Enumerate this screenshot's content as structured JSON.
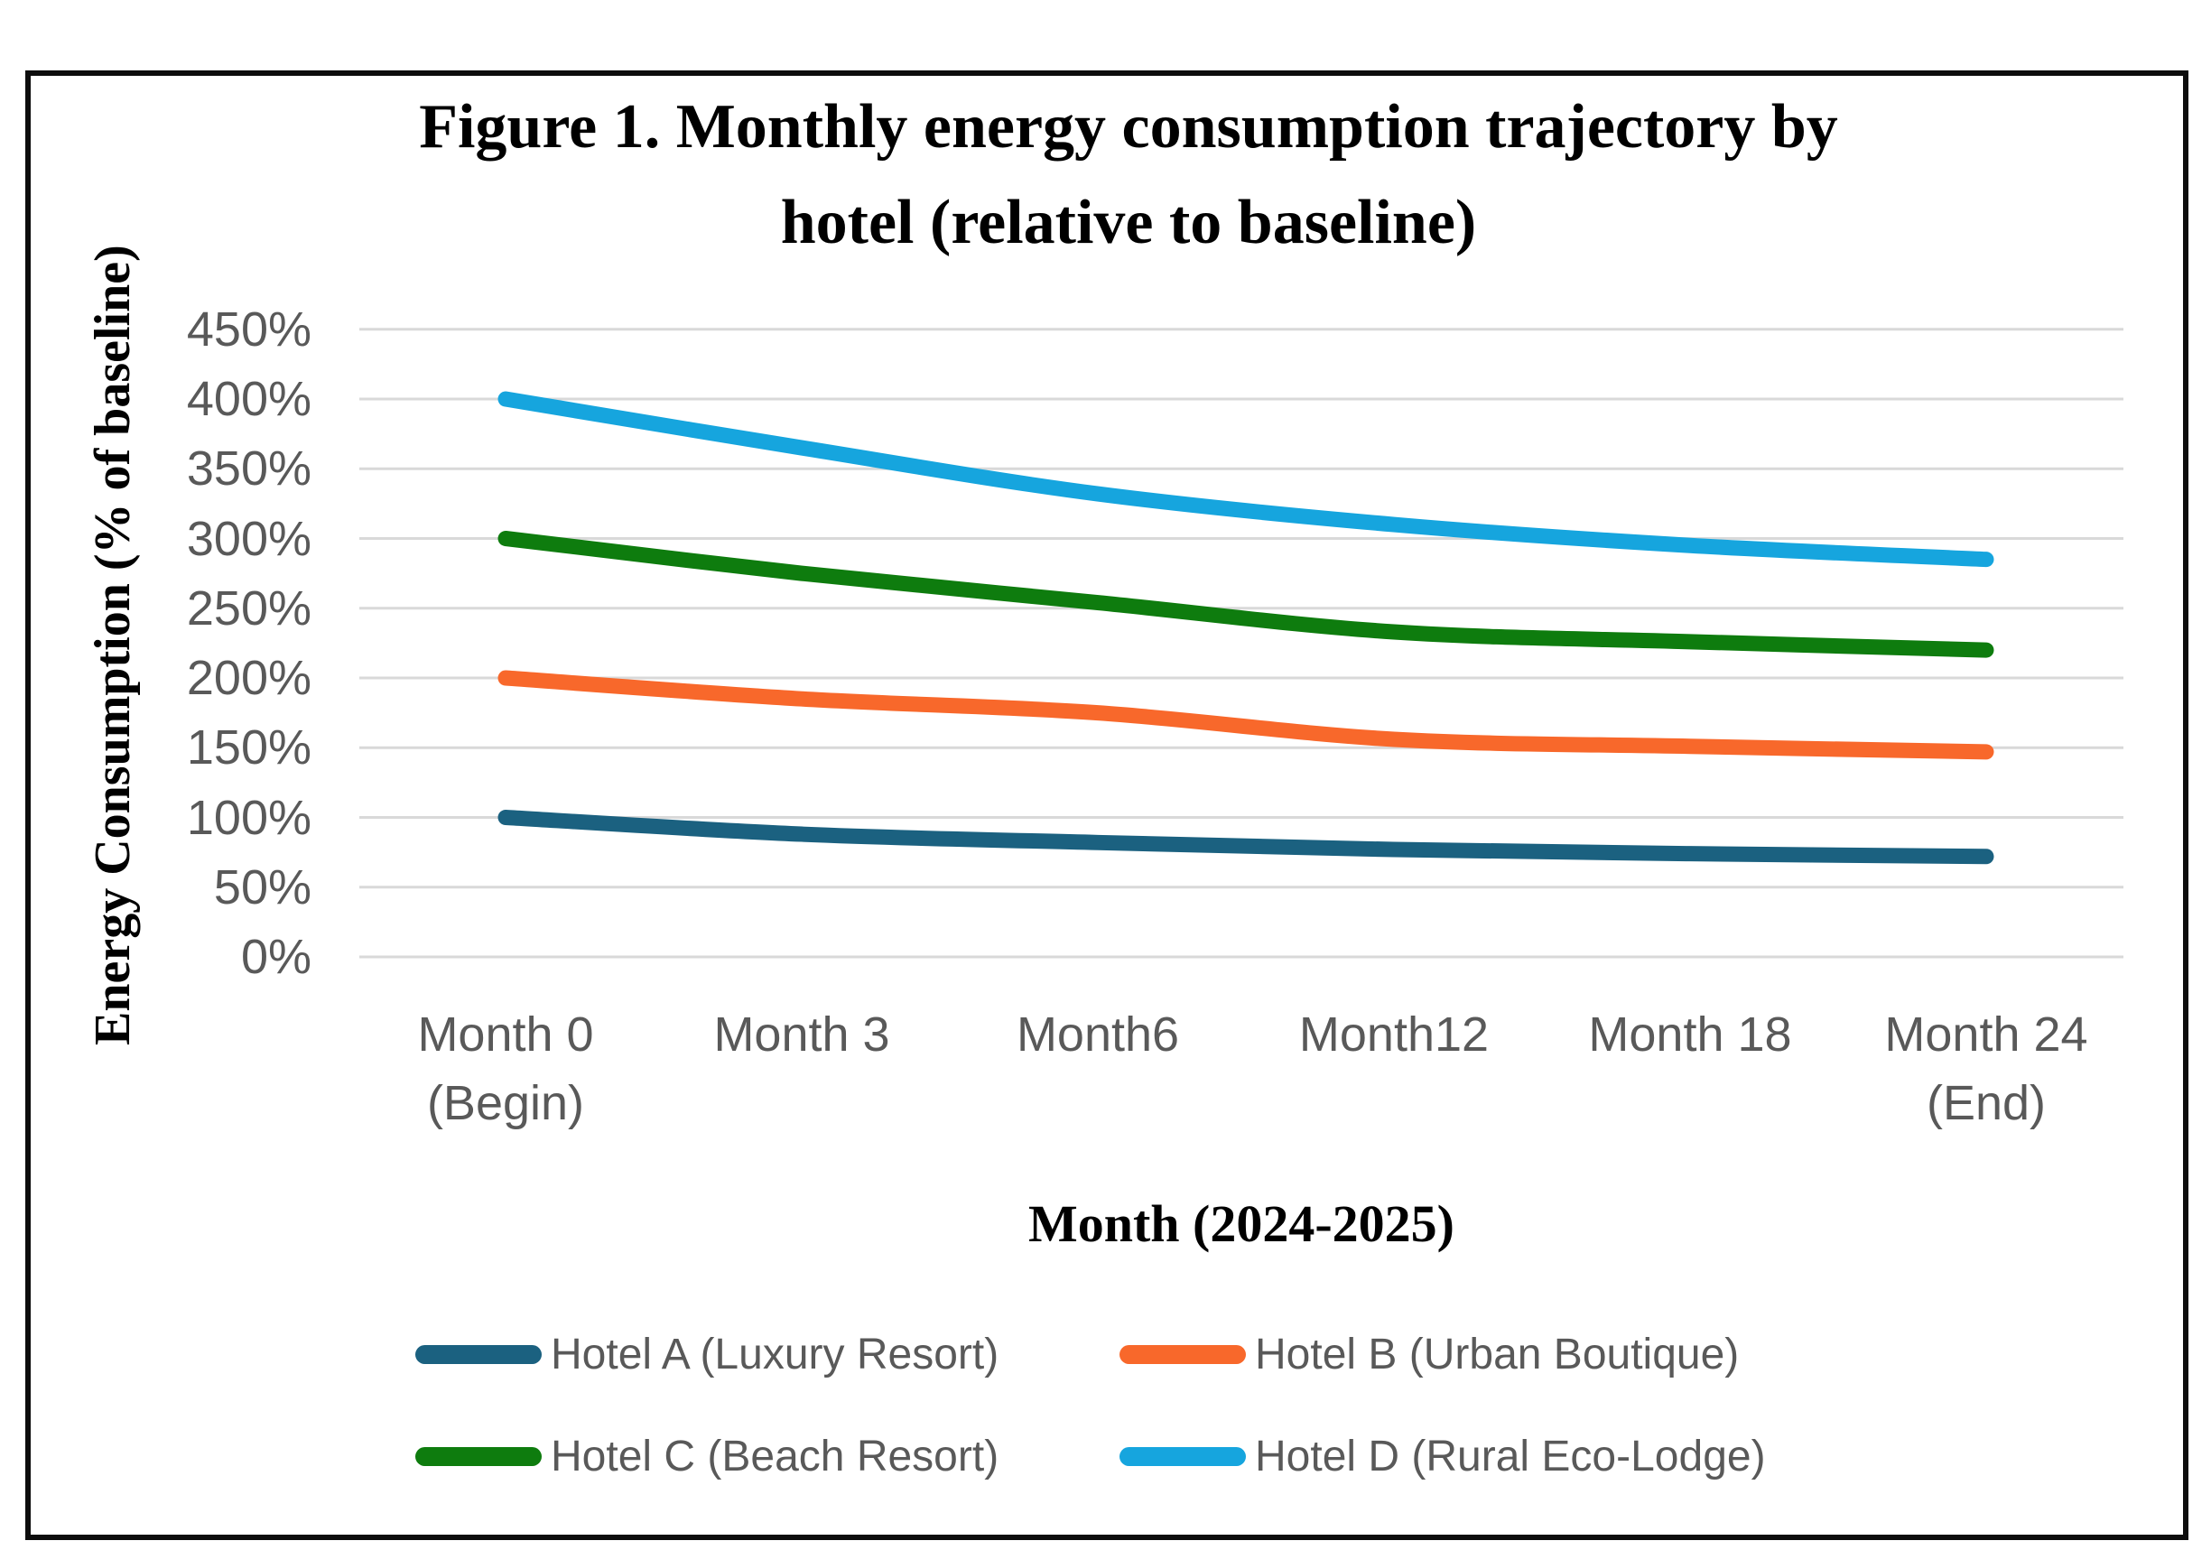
{
  "colors": {
    "grid": "#D9D9D9",
    "axis_text": "#595959",
    "title_text": "#000000",
    "frame_border": "#0D0D0D",
    "background": "#FFFFFF"
  },
  "chart_data": {
    "type": "line",
    "title": "Figure 1. Monthly energy consumption trajectory by hotel (relative to baseline)",
    "title_lines": [
      "Figure 1. Monthly energy consumption trajectory by",
      "hotel (relative to baseline)"
    ],
    "xlabel": "Month (2024-2025)",
    "ylabel": "Energy Consumption (% of baseline)",
    "categories": [
      "Month 0 (Begin)",
      "Month 3",
      "Month6",
      "Month12",
      "Month 18",
      "Month 24 (End)"
    ],
    "x_tick_lines": [
      [
        "Month 0",
        "(Begin)"
      ],
      [
        "Month 3",
        ""
      ],
      [
        "Month6",
        ""
      ],
      [
        "Month12",
        ""
      ],
      [
        "Month 18",
        ""
      ],
      [
        "Month 24",
        "(End)"
      ]
    ],
    "y_tick_labels": [
      "0%",
      "50%",
      "100%",
      "150%",
      "200%",
      "250%",
      "300%",
      "350%",
      "400%",
      "450%"
    ],
    "ylim": [
      0,
      450
    ],
    "ytick_step": 50,
    "grid": true,
    "legend_position": "bottom",
    "series": [
      {
        "name": "Hotel A (Luxury Resort)",
        "color": "#1B6180",
        "values": [
          100,
          88,
          82,
          77,
          74,
          72
        ]
      },
      {
        "name": "Hotel B (Urban Boutique)",
        "color": "#F8682B",
        "values": [
          200,
          185,
          175,
          156,
          151,
          147
        ]
      },
      {
        "name": "Hotel C (Beach Resort)",
        "color": "#0E7C0E",
        "values": [
          300,
          275,
          254,
          233,
          226,
          220
        ]
      },
      {
        "name": "Hotel D (Rural Eco-Lodge)",
        "color": "#16A5DE",
        "values": [
          400,
          365,
          332,
          310,
          295,
          285
        ]
      }
    ]
  }
}
